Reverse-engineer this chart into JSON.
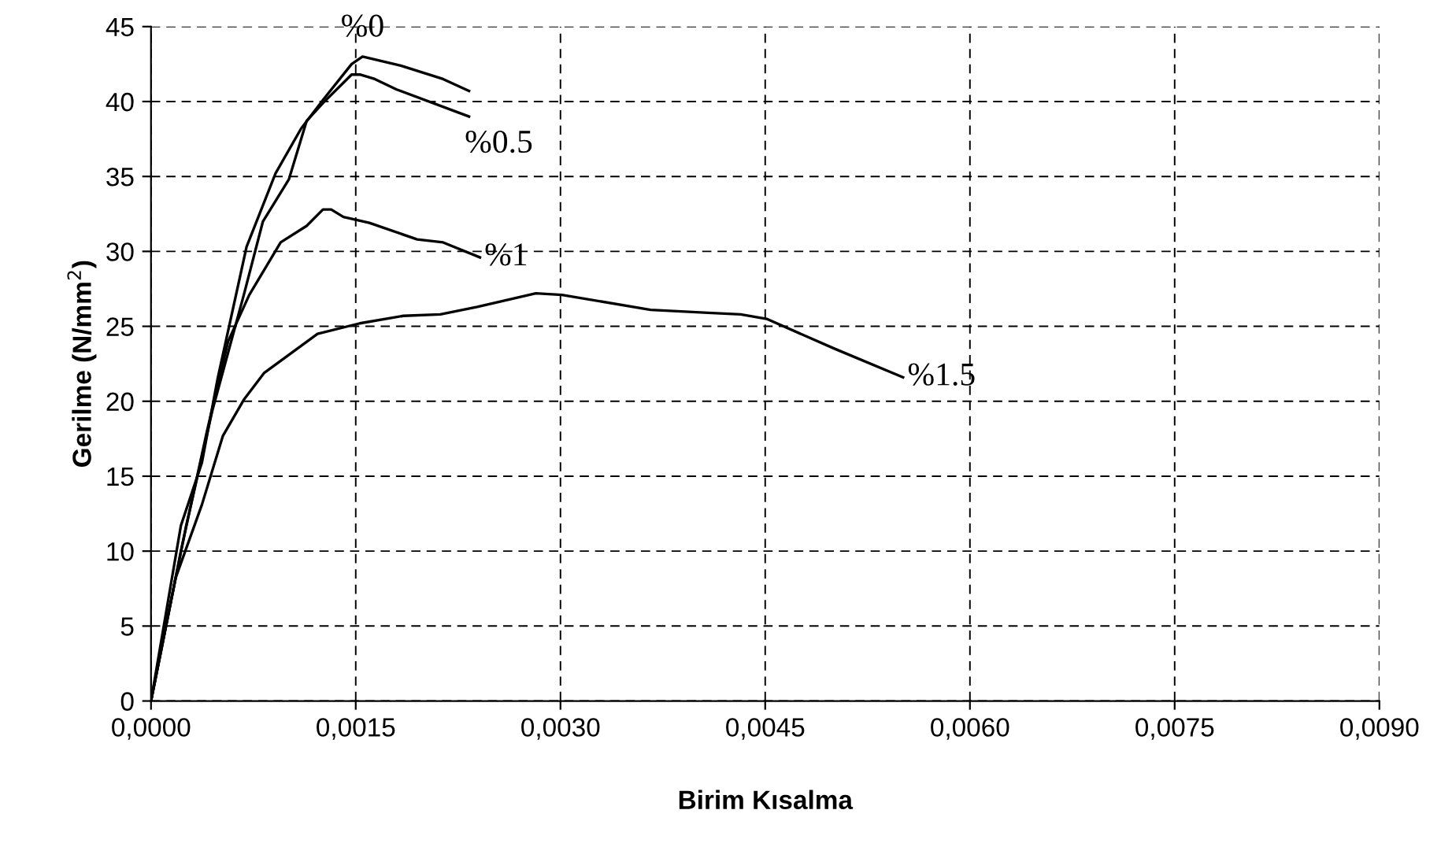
{
  "chart_data": {
    "type": "line",
    "xlabel": "Birim Kısalma",
    "ylabel": "Gerilme (N/mm$^{2}$)",
    "xlim": [
      0,
      0.009
    ],
    "ylim": [
      0,
      45
    ],
    "xticks": [
      {
        "value": 0,
        "label": "0,0000"
      },
      {
        "value": 0.0015,
        "label": "0,0015"
      },
      {
        "value": 0.003,
        "label": "0,0030"
      },
      {
        "value": 0.0045,
        "label": "0,0045"
      },
      {
        "value": 0.006,
        "label": "0,0060"
      },
      {
        "value": 0.0075,
        "label": "0,0075"
      },
      {
        "value": 0.009,
        "label": "0,0090"
      }
    ],
    "yticks": [
      0,
      5,
      10,
      15,
      20,
      25,
      30,
      35,
      40,
      45
    ],
    "grid": true,
    "line_style": "solid",
    "marker": "none",
    "series": [
      {
        "color": "#000000",
        "x": [
          0,
          0.000219,
          0.000373,
          0.000488,
          0.0007,
          0.000912,
          0.0011,
          0.00126,
          0.00147,
          0.00155,
          0.00183,
          0.00214,
          0.00233
        ],
        "values": [
          0,
          11.7,
          15.9,
          21.5,
          30.3,
          35.2,
          38.2,
          40.1,
          42.5,
          43.0,
          42.4,
          41.5,
          40.7
        ]
      },
      {
        "color": "#000000",
        "x": [
          0,
          0.000258,
          0.00045,
          0.00068,
          0.00082,
          0.00101,
          0.00114,
          0.00126,
          0.00147,
          0.00153,
          0.00164,
          0.0018,
          0.00233
        ],
        "values": [
          0,
          11.7,
          19.4,
          27.1,
          32.0,
          34.8,
          38.7,
          39.9,
          41.8,
          41.8,
          41.5,
          40.8,
          39.0
        ]
      },
      {
        "color": "#000000",
        "x": [
          0,
          0.000219,
          0.00041,
          0.000565,
          0.00072,
          0.00095,
          0.00114,
          0.00126,
          0.00132,
          0.00141,
          0.0016,
          0.00195,
          0.00214,
          0.00241
        ],
        "values": [
          0,
          10.0,
          18.0,
          24.0,
          27.1,
          30.6,
          31.7,
          32.8,
          32.8,
          32.3,
          31.9,
          30.8,
          30.6,
          29.6
        ]
      },
      {
        "color": "#000000",
        "x": [
          0,
          0.00018,
          0.000373,
          0.000527,
          0.00068,
          0.00083,
          0.00122,
          0.00153,
          0.00185,
          0.00212,
          0.00239,
          0.00282,
          0.00301,
          0.00366,
          0.00408,
          0.00432,
          0.00451,
          0.00501,
          0.00551
        ],
        "values": [
          0,
          8.2,
          13.1,
          17.7,
          20.1,
          21.9,
          24.5,
          25.2,
          25.7,
          25.8,
          26.3,
          27.2,
          27.1,
          26.1,
          25.9,
          25.8,
          25.5,
          23.5,
          21.6
        ]
      }
    ],
    "annotations": [
      {
        "text": "%0",
        "x": 0.00155,
        "y": 43.0
      },
      {
        "text": "%0.5",
        "x": 0.00233,
        "y": 39.0
      },
      {
        "text": "%1",
        "x": 0.00241,
        "y": 29.6
      },
      {
        "text": "%1.5",
        "x": 0.00551,
        "y": 21.6
      }
    ]
  }
}
